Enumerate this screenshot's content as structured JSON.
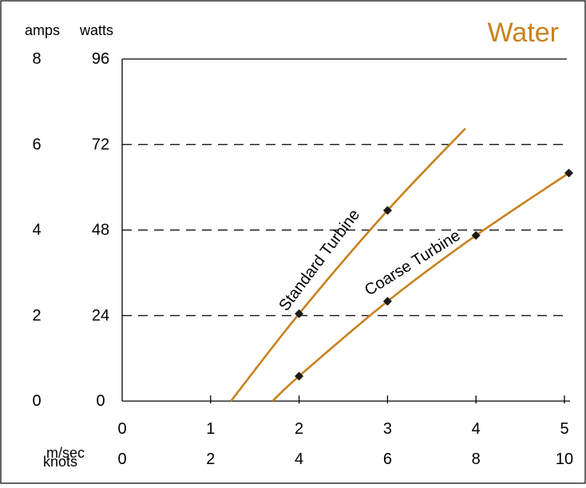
{
  "chart_data": {
    "type": "line",
    "title": "Water",
    "y_axes": {
      "left_unit": "amps",
      "left_ticks": [
        "8",
        "6",
        "4",
        "2",
        "0"
      ],
      "right_unit": "watts",
      "right_ticks": [
        "96",
        "72",
        "48",
        "24",
        "0"
      ],
      "ylim_watts": [
        0,
        96
      ]
    },
    "x_axes": {
      "primary_unit": "m/sec",
      "primary_ticks": [
        "0",
        "1",
        "2",
        "3",
        "4",
        "5"
      ],
      "secondary_unit": "knots",
      "secondary_ticks": [
        "0",
        "2",
        "4",
        "6",
        "8",
        "10"
      ],
      "xlim_mps": [
        0,
        5
      ]
    },
    "grid": "dashed horizontal at 24, 48, 72 watts",
    "series": [
      {
        "name": "Standard Turbine",
        "color": "#c8821e",
        "curve": [
          [
            1.23,
            0
          ],
          [
            2.0,
            24.5
          ],
          [
            3.0,
            53.5
          ],
          [
            3.88,
            76.5
          ]
        ],
        "markers": [
          [
            2.0,
            24.5
          ],
          [
            3.0,
            53.5
          ]
        ]
      },
      {
        "name": "Coarse Turbine",
        "color": "#c8821e",
        "curve": [
          [
            1.7,
            0
          ],
          [
            2.0,
            7
          ],
          [
            3.0,
            28
          ],
          [
            4.0,
            46.5
          ],
          [
            5.05,
            64
          ]
        ],
        "markers": [
          [
            2.0,
            7
          ],
          [
            3.0,
            28
          ],
          [
            4.0,
            46.5
          ],
          [
            5.05,
            64
          ]
        ]
      }
    ]
  },
  "colors": {
    "accent": "#c8821e",
    "axis": "#000000",
    "marker": "#1a1a1a"
  }
}
